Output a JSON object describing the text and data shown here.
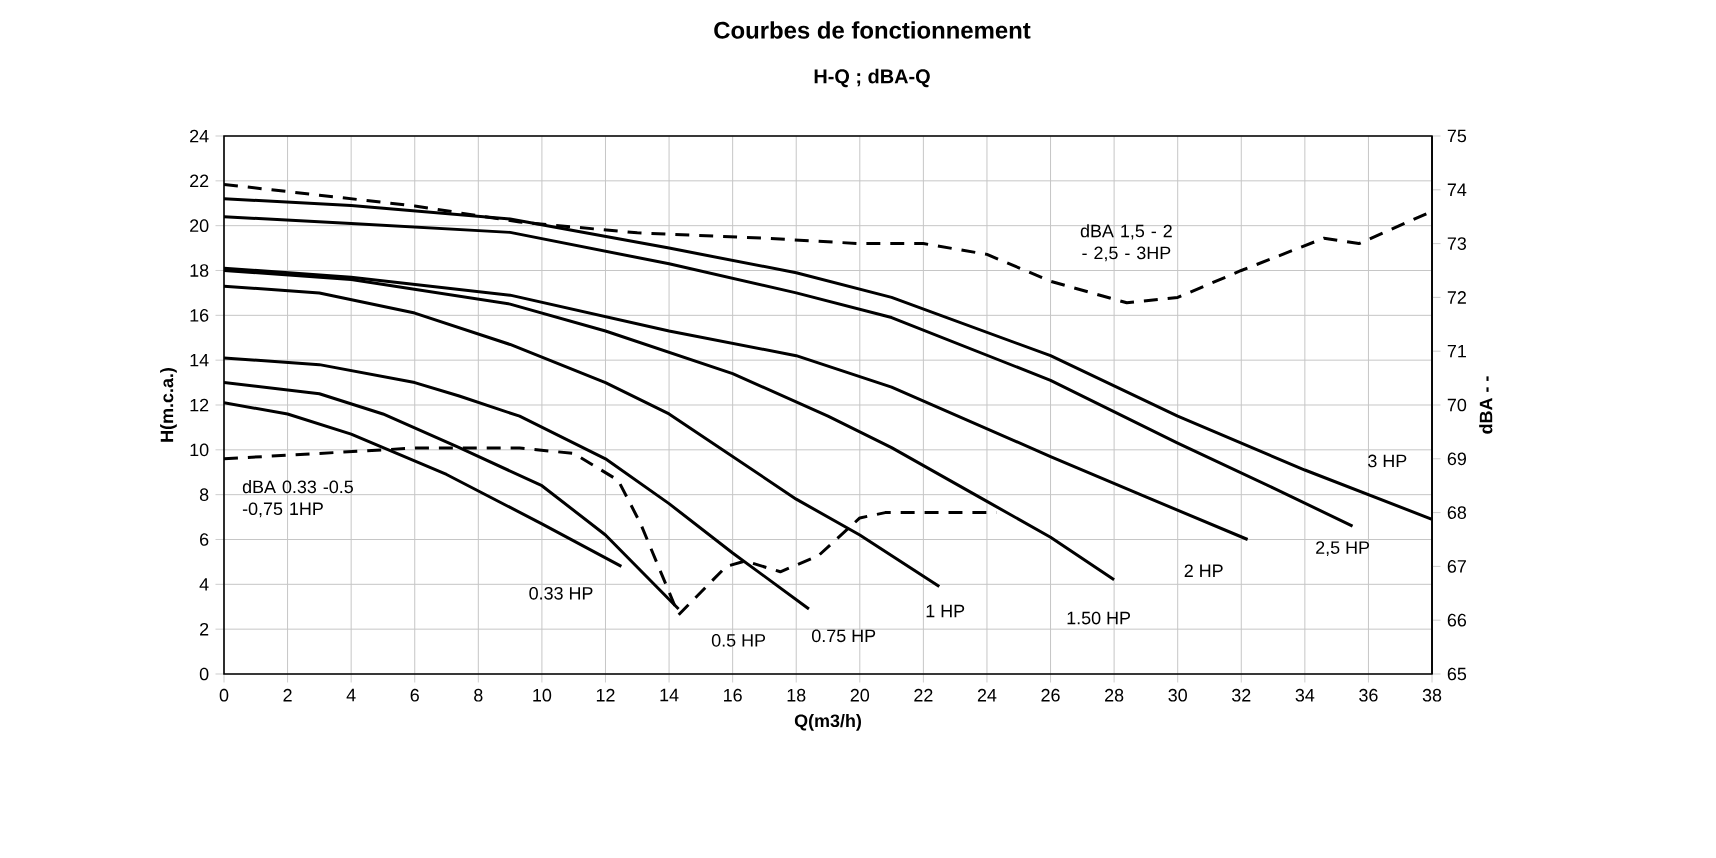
{
  "chart_data": {
    "type": "line",
    "title": "Courbes de fonctionnement",
    "subtitle": "H-Q ; dBA-Q",
    "xlabel": "Q(m3/h)",
    "ylabel": "H(m.c.a.)",
    "y2label": "dBA - -",
    "xlim": [
      0,
      38
    ],
    "ylim": [
      0,
      24
    ],
    "y2lim": [
      65,
      75
    ],
    "xticks": [
      0,
      2,
      4,
      6,
      8,
      10,
      12,
      14,
      16,
      18,
      20,
      22,
      24,
      26,
      28,
      30,
      32,
      34,
      36,
      38
    ],
    "yticks": [
      0,
      2,
      4,
      6,
      8,
      10,
      12,
      14,
      16,
      18,
      20,
      22,
      24
    ],
    "y2ticks": [
      65,
      66,
      67,
      68,
      69,
      70,
      71,
      72,
      73,
      74,
      75
    ],
    "grid": true,
    "series": [
      {
        "name": "0.33 HP",
        "color": "#000000",
        "x": [
          0,
          2,
          4,
          7,
          10,
          12.5
        ],
        "values": [
          12.1,
          11.6,
          10.7,
          8.9,
          6.7,
          4.8
        ]
      },
      {
        "name": "0.5 HP",
        "color": "#000000",
        "x": [
          0,
          3,
          5,
          7.4,
          10,
          12,
          14.3
        ],
        "values": [
          13.0,
          12.5,
          11.6,
          10.1,
          8.4,
          6.2,
          2.9
        ]
      },
      {
        "name": "0.75 HP",
        "color": "#000000",
        "x": [
          0,
          3,
          6,
          7.4,
          9.3,
          12,
          14,
          16,
          18.4
        ],
        "values": [
          14.1,
          13.8,
          13.0,
          12.4,
          11.5,
          9.6,
          7.6,
          5.4,
          2.9
        ]
      },
      {
        "name": "1 HP",
        "color": "#000000",
        "x": [
          0,
          3,
          6,
          9,
          12,
          14,
          16,
          18,
          20,
          22.5
        ],
        "values": [
          17.3,
          17.0,
          16.1,
          14.7,
          13.0,
          11.6,
          9.7,
          7.8,
          6.2,
          3.9
        ]
      },
      {
        "name": "1.50 HP",
        "color": "#000000",
        "x": [
          0,
          4,
          9,
          12,
          16,
          19,
          21,
          24,
          26,
          28
        ],
        "values": [
          18.0,
          17.6,
          16.5,
          15.3,
          13.4,
          11.5,
          10.1,
          7.7,
          6.1,
          4.2
        ]
      },
      {
        "name": "2 HP",
        "color": "#000000",
        "x": [
          0,
          4,
          9,
          14,
          18,
          21,
          26,
          29,
          32.2
        ],
        "values": [
          18.1,
          17.7,
          16.9,
          15.3,
          14.2,
          12.8,
          9.7,
          7.9,
          6.0
        ]
      },
      {
        "name": "2,5 HP",
        "color": "#000000",
        "x": [
          0,
          4,
          9,
          14,
          18,
          21,
          26,
          30,
          33,
          35.5
        ],
        "values": [
          20.4,
          20.1,
          19.7,
          18.3,
          17.0,
          15.9,
          13.1,
          10.3,
          8.3,
          6.6
        ]
      },
      {
        "name": "3 HP",
        "color": "#000000",
        "x": [
          0,
          4,
          9,
          14,
          18,
          21,
          26,
          30,
          34,
          38
        ],
        "values": [
          21.2,
          20.9,
          20.3,
          19.0,
          17.9,
          16.8,
          14.2,
          11.5,
          9.1,
          6.9
        ]
      },
      {
        "name": "dBA 0.33 -0.5 -0,75 1HP",
        "color": "#000000",
        "axis": "y2",
        "line_style": "dashed",
        "x": [
          0,
          3,
          6,
          9.3,
          11,
          12.4,
          13.1,
          14.3,
          15.8,
          16.4,
          17.5,
          18.7,
          20,
          20.8,
          24.3
        ],
        "values": [
          69.0,
          69.1,
          69.2,
          69.2,
          69.1,
          68.6,
          67.8,
          66.1,
          67.0,
          67.1,
          66.9,
          67.2,
          67.9,
          68.0,
          68.0
        ]
      },
      {
        "name": "dBA 1,5 - 2 - 2,5 - 3HP",
        "color": "#000000",
        "axis": "y2",
        "line_style": "dashed",
        "x": [
          0,
          3,
          6,
          9.3,
          13,
          17,
          20,
          22,
          24,
          26,
          28.4,
          30,
          32,
          34.6,
          35.7,
          38
        ],
        "values": [
          74.1,
          73.9,
          73.7,
          73.4,
          73.2,
          73.1,
          73.0,
          73.0,
          72.8,
          72.3,
          71.9,
          72.0,
          72.5,
          73.1,
          73.0,
          73.6
        ]
      }
    ]
  }
}
